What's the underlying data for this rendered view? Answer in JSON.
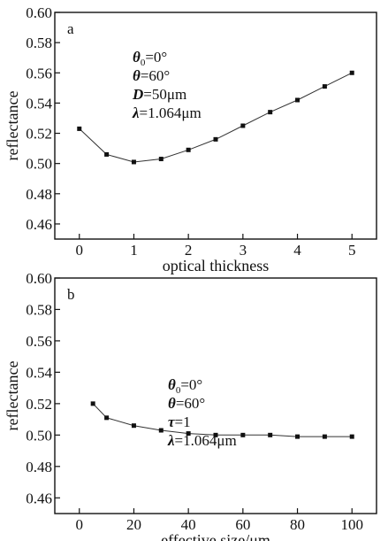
{
  "chart_data": [
    {
      "type": "line",
      "panel": "a",
      "xlabel": "optical thickness",
      "ylabel": "reflectance",
      "xlim": [
        -0.45,
        5.45
      ],
      "ylim": [
        0.45,
        0.6
      ],
      "xticks": [
        0,
        1,
        2,
        3,
        4,
        5
      ],
      "yticks": [
        0.46,
        0.48,
        0.5,
        0.52,
        0.54,
        0.56,
        0.58,
        0.6
      ],
      "ytick_labels": [
        "0.46",
        "0.48",
        "0.50",
        "0.52",
        "0.54",
        "0.56",
        "0.58",
        "0.60"
      ],
      "marker": "square",
      "grid": false,
      "annotations": [
        {
          "sym": "θ",
          "sub": "0",
          "rest": "=0°"
        },
        {
          "sym": "θ",
          "sub": "",
          "rest": "=60°"
        },
        {
          "sym": "D",
          "sub": "",
          "rest": "=50μm"
        },
        {
          "sym": "λ",
          "sub": "",
          "rest": "=1.064μm"
        }
      ],
      "series": [
        {
          "x": [
            0,
            0.5,
            1,
            1.5,
            2,
            2.5,
            3,
            3.5,
            4,
            4.5,
            5
          ],
          "y": [
            0.523,
            0.506,
            0.501,
            0.503,
            0.509,
            0.516,
            0.525,
            0.534,
            0.542,
            0.551,
            0.56
          ]
        }
      ]
    },
    {
      "type": "line",
      "panel": "b",
      "xlabel": "effective size/μm",
      "ylabel": "reflectance",
      "xlim": [
        -9,
        109
      ],
      "ylim": [
        0.45,
        0.6
      ],
      "xticks": [
        0,
        20,
        40,
        60,
        80,
        100
      ],
      "yticks": [
        0.46,
        0.48,
        0.5,
        0.52,
        0.54,
        0.56,
        0.58,
        0.6
      ],
      "ytick_labels": [
        "0.46",
        "0.48",
        "0.50",
        "0.52",
        "0.54",
        "0.56",
        "0.58",
        "0.60"
      ],
      "marker": "square",
      "grid": false,
      "annotations": [
        {
          "sym": "θ",
          "sub": "0",
          "rest": "=0°"
        },
        {
          "sym": "θ",
          "sub": "",
          "rest": "=60°"
        },
        {
          "sym": "τ",
          "sub": "",
          "rest": "=1"
        },
        {
          "sym": "λ",
          "sub": "",
          "rest": "=1.064μm"
        }
      ],
      "series": [
        {
          "x": [
            5,
            10,
            20,
            30,
            40,
            50,
            60,
            70,
            80,
            90,
            100
          ],
          "y": [
            0.52,
            0.511,
            0.506,
            0.503,
            0.501,
            0.5,
            0.5,
            0.5,
            0.499,
            0.499,
            0.499
          ]
        }
      ]
    }
  ]
}
